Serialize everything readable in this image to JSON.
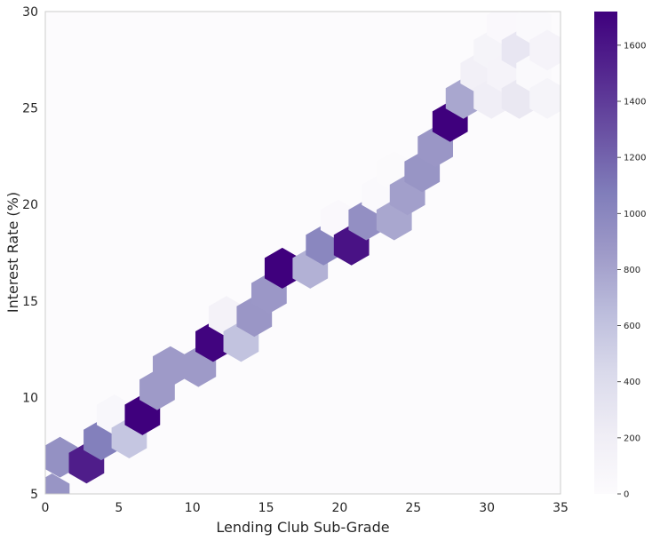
{
  "chart_data": {
    "type": "heatmap",
    "subtype": "hexbin",
    "xlabel": "Lending Club Sub-Grade",
    "ylabel": "Interest Rate (%)",
    "xlim": [
      0,
      35
    ],
    "ylim": [
      5,
      30
    ],
    "xticks": [
      0,
      5,
      10,
      15,
      20,
      25,
      30,
      35
    ],
    "yticks": [
      5,
      10,
      15,
      20,
      25,
      30
    ],
    "grid": false,
    "colormap": "Purples",
    "colorbar": {
      "range": [
        0,
        1720
      ],
      "ticks": [
        0,
        200,
        400,
        600,
        800,
        1000,
        1200,
        1400,
        1600
      ]
    },
    "hex_grid": {
      "x_step": 2.35,
      "y_step": 1.27
    },
    "bins": [
      {
        "x": 0.45,
        "y": 5.0,
        "count": 900
      },
      {
        "x": 1.0,
        "y": 6.9,
        "count": 930
      },
      {
        "x": 2.8,
        "y": 6.6,
        "count": 1560
      },
      {
        "x": 3.8,
        "y": 7.8,
        "count": 1050
      },
      {
        "x": 4.7,
        "y": 9.1,
        "count": 60
      },
      {
        "x": 5.7,
        "y": 7.9,
        "count": 580
      },
      {
        "x": 6.6,
        "y": 9.1,
        "count": 1720
      },
      {
        "x": 7.6,
        "y": 10.4,
        "count": 860
      },
      {
        "x": 8.5,
        "y": 11.6,
        "count": 860
      },
      {
        "x": 10.4,
        "y": 11.6,
        "count": 860
      },
      {
        "x": 11.4,
        "y": 12.9,
        "count": 1700
      },
      {
        "x": 12.3,
        "y": 14.2,
        "count": 140
      },
      {
        "x": 13.3,
        "y": 12.9,
        "count": 600
      },
      {
        "x": 14.2,
        "y": 14.2,
        "count": 890
      },
      {
        "x": 15.2,
        "y": 15.4,
        "count": 880
      },
      {
        "x": 16.1,
        "y": 16.7,
        "count": 1720
      },
      {
        "x": 18.0,
        "y": 16.7,
        "count": 720
      },
      {
        "x": 18.9,
        "y": 17.9,
        "count": 1000
      },
      {
        "x": 19.9,
        "y": 19.2,
        "count": 40
      },
      {
        "x": 20.8,
        "y": 17.9,
        "count": 1620
      },
      {
        "x": 21.8,
        "y": 19.2,
        "count": 940
      },
      {
        "x": 22.7,
        "y": 20.5,
        "count": 25
      },
      {
        "x": 23.7,
        "y": 19.2,
        "count": 780
      },
      {
        "x": 23.7,
        "y": 21.7,
        "count": 20
      },
      {
        "x": 24.6,
        "y": 20.5,
        "count": 830
      },
      {
        "x": 25.6,
        "y": 21.7,
        "count": 900
      },
      {
        "x": 26.5,
        "y": 23.0,
        "count": 890
      },
      {
        "x": 27.5,
        "y": 24.3,
        "count": 1720
      },
      {
        "x": 28.4,
        "y": 25.5,
        "count": 780
      },
      {
        "x": 29.4,
        "y": 26.8,
        "count": 170
      },
      {
        "x": 30.3,
        "y": 25.5,
        "count": 200
      },
      {
        "x": 30.3,
        "y": 28.0,
        "count": 110
      },
      {
        "x": 31.2,
        "y": 26.8,
        "count": 120
      },
      {
        "x": 31.2,
        "y": 29.3,
        "count": 40
      },
      {
        "x": 32.2,
        "y": 25.5,
        "count": 270
      },
      {
        "x": 32.2,
        "y": 28.0,
        "count": 290
      },
      {
        "x": 33.2,
        "y": 26.8,
        "count": 30
      },
      {
        "x": 33.2,
        "y": 29.3,
        "count": 30
      },
      {
        "x": 34.1,
        "y": 25.5,
        "count": 110
      },
      {
        "x": 34.1,
        "y": 28.0,
        "count": 120
      }
    ]
  }
}
